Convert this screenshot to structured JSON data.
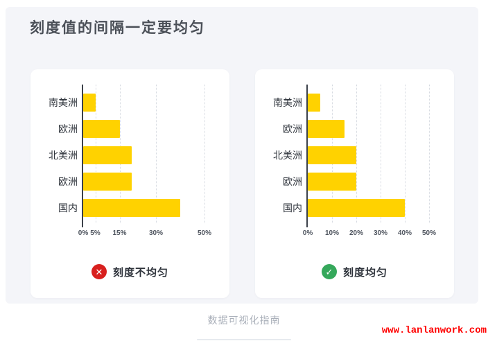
{
  "page": {
    "title": "刻度值的间隔一定要均匀",
    "footer_caption": "数据可视化指南",
    "watermark": "www.lanlanwork.com"
  },
  "colors": {
    "panel_bg": "#F4F5F9",
    "title_text": "#4B5058",
    "bar": "#FFD200",
    "bad": "#D8201E",
    "good": "#35A85B",
    "watermark": "#FF0000"
  },
  "chart_data": [
    {
      "type": "bar",
      "orientation": "horizontal",
      "categories": [
        "南美洲",
        "欧洲",
        "北美洲",
        "欧洲",
        "国内"
      ],
      "values": [
        5,
        15,
        20,
        20,
        40
      ],
      "unit": "%",
      "xlim": [
        0,
        50
      ],
      "x_ticks": [
        0,
        5,
        15,
        30,
        50
      ],
      "x_tick_labels": [
        "0%",
        "5%",
        "15%",
        "30%",
        "50%"
      ],
      "grid": "dotted-vertical",
      "legend": "none",
      "caption": "刻度不均匀",
      "caption_status": "bad",
      "status_icon": "✕"
    },
    {
      "type": "bar",
      "orientation": "horizontal",
      "categories": [
        "南美洲",
        "欧洲",
        "北美洲",
        "欧洲",
        "国内"
      ],
      "values": [
        5,
        15,
        20,
        20,
        40
      ],
      "unit": "%",
      "xlim": [
        0,
        50
      ],
      "x_ticks": [
        0,
        10,
        20,
        30,
        40,
        50
      ],
      "x_tick_labels": [
        "0%",
        "10%",
        "20%",
        "30%",
        "40%",
        "50%"
      ],
      "grid": "dotted-vertical",
      "legend": "none",
      "caption": "刻度均匀",
      "caption_status": "good",
      "status_icon": "✓"
    }
  ]
}
